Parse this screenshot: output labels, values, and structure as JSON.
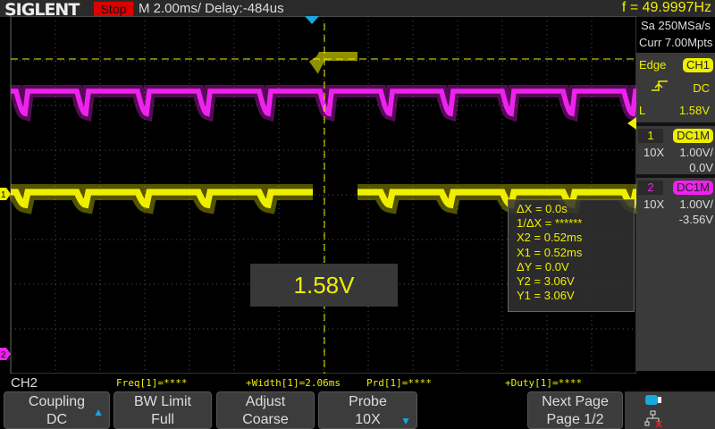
{
  "header": {
    "brand": "SIGLENT",
    "run_state": "Stop",
    "timebase": "M 2.00ms/ Delay:-484us",
    "frequency": "f = 49.9997Hz"
  },
  "acquisition": {
    "sample_rate": "Sa 250MSa/s",
    "memory": "Curr 7.00Mpts"
  },
  "trigger": {
    "type": "Edge",
    "source": "CH1",
    "slope_icon": "rising-edge-icon",
    "coupling": "DC",
    "level_label": "L",
    "level": "1.58V"
  },
  "channels": [
    {
      "num": "1",
      "coupling": "DC1M",
      "probe": "10X",
      "scale": "1.00V/",
      "offset": "0.0V",
      "color": "#eeee00"
    },
    {
      "num": "2",
      "coupling": "DC1M",
      "probe": "10X",
      "scale": "1.00V/",
      "offset": "-3.56V",
      "color": "#ee22ee"
    }
  ],
  "markers": {
    "ch1": "1",
    "ch2": "2"
  },
  "cursors": [
    "ΔX = 0.0s",
    "1/ΔX = ******",
    "X2 = 0.52ms",
    "X1 = 0.52ms",
    "ΔY = 0.0V",
    "Y2 = 3.06V",
    "Y1 = 3.06V"
  ],
  "level_popup": "1.58V",
  "measurements": {
    "channel": "CH2",
    "items": [
      "Freq[1]=****",
      "+Width[1]=2.06ms",
      "Prd[1]=****",
      "+Duty[1]=****"
    ]
  },
  "menu": [
    {
      "line1": "Coupling",
      "line2": "DC",
      "arrow": "up"
    },
    {
      "line1": "BW Limit",
      "line2": "Full"
    },
    {
      "line1": "Adjust",
      "line2": "Coarse"
    },
    {
      "line1": "Probe",
      "line2": "10X",
      "arrow": "down"
    },
    {
      "line1": "Next Page",
      "line2": "Page 1/2"
    }
  ],
  "arrows": {
    "up": "▲",
    "down": "▼"
  },
  "colors": {
    "ch1": "#eeee00",
    "ch2": "#ee22ee",
    "accent": "#19a7e0",
    "stop": "#dd0000"
  }
}
